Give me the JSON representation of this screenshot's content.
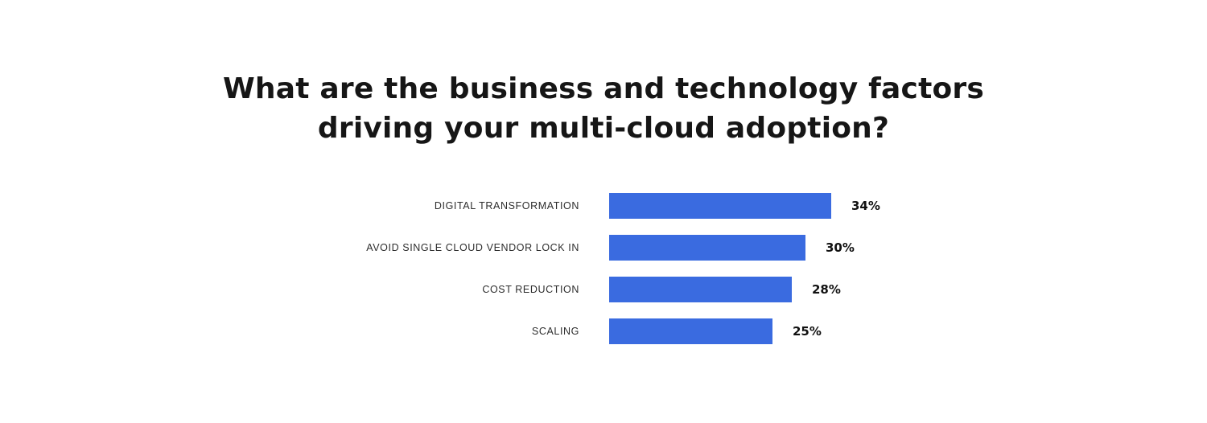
{
  "title": {
    "line1": "What are the business and technology factors",
    "line2": "driving your multi-cloud adoption?"
  },
  "chart_data": {
    "type": "bar",
    "orientation": "horizontal",
    "title": "What are the business and technology factors driving your multi-cloud adoption?",
    "categories": [
      "DIGITAL TRANSFORMATION",
      "AVOID SINGLE CLOUD VENDOR LOCK IN",
      "COST REDUCTION",
      "SCALING"
    ],
    "values": [
      34,
      30,
      28,
      25
    ],
    "value_labels": [
      "34%",
      "30%",
      "28%",
      "25%"
    ],
    "xlabel": "",
    "ylabel": "",
    "xlim": [
      0,
      34
    ],
    "grid": false,
    "legend": false,
    "bar_color": "#3a6be0",
    "background_color": "#ffffff"
  }
}
